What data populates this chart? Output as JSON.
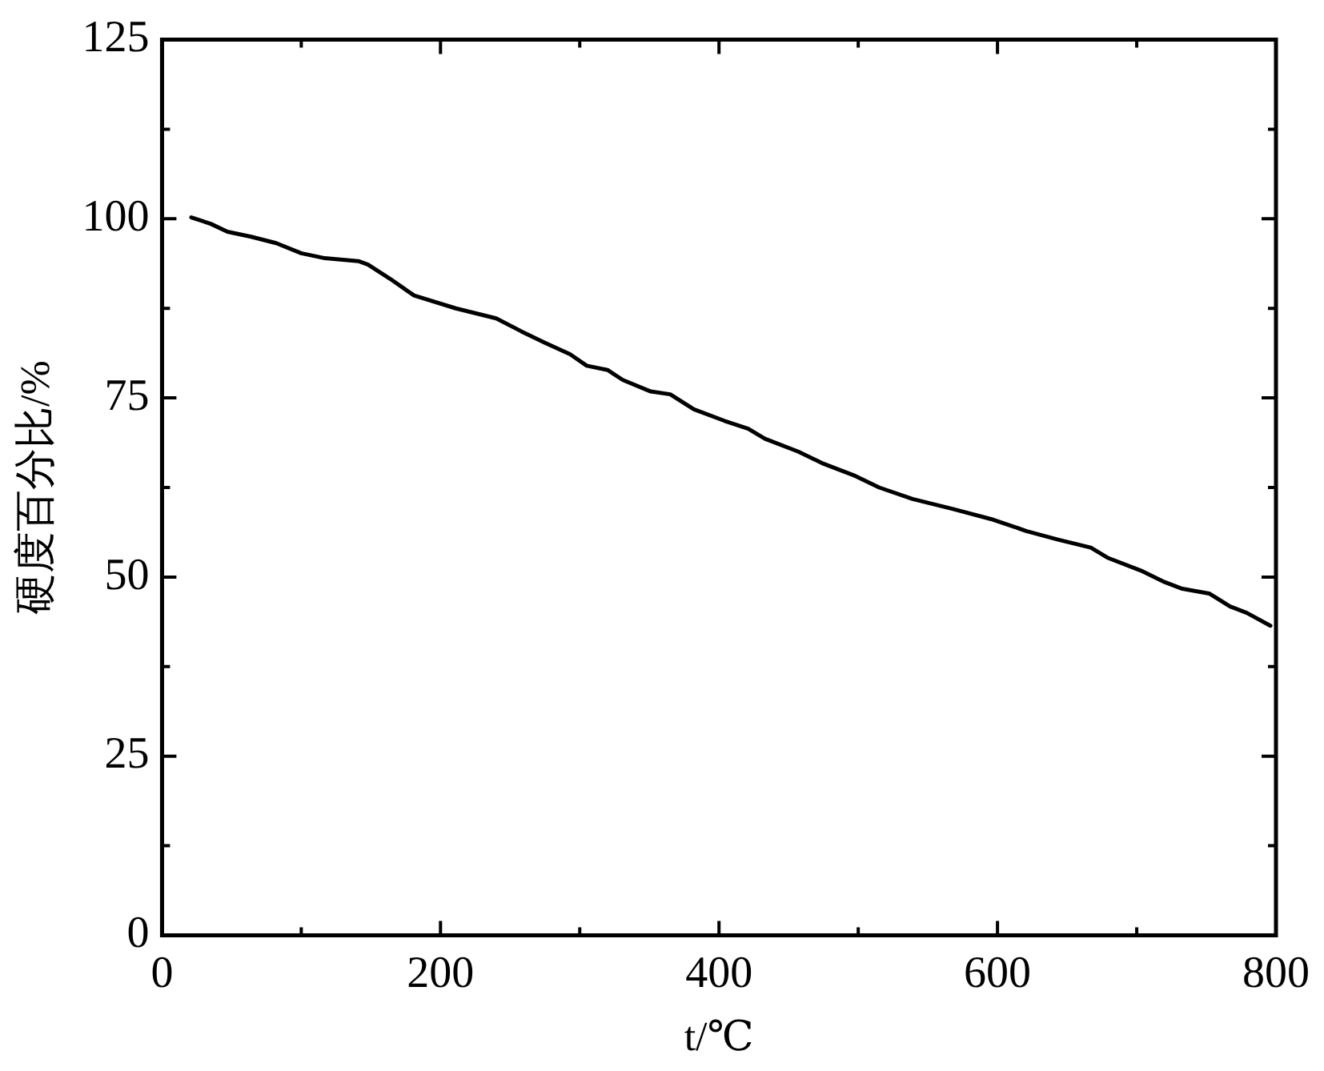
{
  "chart_data": {
    "type": "line",
    "xlabel": "t/℃",
    "ylabel": "硬度百分比/%",
    "xlim": [
      0,
      800
    ],
    "xticks": [
      0,
      {
        "value": 100,
        "label": null
      },
      200,
      {
        "value": 300,
        "label": null
      },
      400,
      {
        "value": 500,
        "label": null
      },
      600,
      {
        "value": 700,
        "label": null
      },
      800
    ],
    "ylim": [
      0,
      125
    ],
    "yticks": [
      0,
      {
        "value": 12.5,
        "label": null
      },
      25,
      {
        "value": 37.5,
        "label": null
      },
      50,
      {
        "value": 62.5,
        "label": null
      },
      75,
      {
        "value": 87.5,
        "label": null
      },
      100,
      {
        "value": 112.5,
        "label": null
      },
      125
    ],
    "grid": false,
    "legend": false,
    "marker": "none",
    "line_style": "solid",
    "series": [
      {
        "color": "#000000",
        "x": [
          21,
          35,
          47,
          64,
          82,
          100,
          117,
          141,
          148,
          164,
          181,
          211,
          240,
          258,
          275,
          293,
          305,
          320,
          331,
          351,
          365,
          382,
          404,
          421,
          433,
          457,
          474,
          498,
          515,
          539,
          568,
          597,
          621,
          644,
          667,
          679,
          703,
          720,
          732,
          752,
          767,
          779,
          796
        ],
        "values": [
          100.2,
          99.3,
          98.2,
          97.5,
          96.6,
          95.2,
          94.5,
          94.1,
          93.6,
          91.6,
          89.3,
          87.5,
          86.1,
          84.3,
          82.7,
          81.1,
          79.5,
          78.9,
          77.5,
          75.9,
          75.5,
          73.4,
          71.8,
          70.7,
          69.3,
          67.5,
          65.9,
          64.1,
          62.5,
          60.9,
          59.5,
          58.0,
          56.4,
          55.2,
          54.1,
          52.7,
          50.9,
          49.3,
          48.4,
          47.7,
          45.9,
          45.0,
          43.2
        ]
      }
    ]
  }
}
